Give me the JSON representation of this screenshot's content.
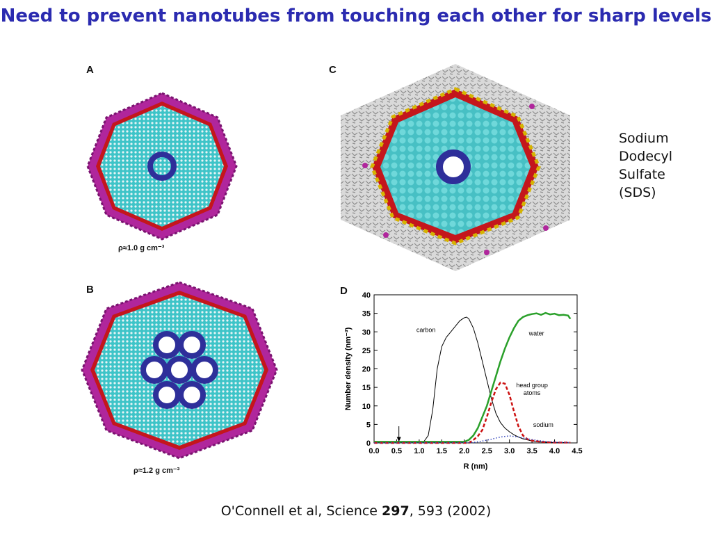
{
  "slide": {
    "title": "Need to prevent nanotubes from touching each other for sharp levels",
    "sds_label": [
      "Sodium",
      "Dodecyl",
      "Sulfate",
      "(SDS)"
    ],
    "citation": {
      "authors": "O'Connell et al,  Science ",
      "volume": "297",
      "rest": ", 593 (2002)"
    }
  },
  "panels": {
    "a": {
      "label": "A",
      "density": "ρ≈1.0 g cm⁻³"
    },
    "b": {
      "label": "B",
      "density": "ρ≈1.2 g cm⁻³"
    },
    "c": {
      "label": "C"
    },
    "d": {
      "label": "D"
    }
  },
  "colors": {
    "title": "#2b2bb0",
    "nanotube": "#2e2f9a",
    "hydrocarbon": "#3ec4c8",
    "sodium": "#b0269c",
    "sulfate": "#d6b400",
    "oxygen": "#c4161c",
    "carbon_curve": "#000000",
    "water_curve": "#2aa02a",
    "head_curve": "#cc1111",
    "sodium_curve": "#3344bb"
  },
  "chart_data": {
    "type": "line",
    "xlabel": "R (nm)",
    "ylabel": "Number density  (nm⁻³)",
    "xlim": [
      0.0,
      4.5
    ],
    "ylim": [
      0,
      40
    ],
    "xticks": [
      "0.0",
      "0.5",
      "1.0",
      "1.5",
      "2.0",
      "2.5",
      "3.0",
      "3.5",
      "4.0",
      "4.5"
    ],
    "yticks": [
      "0",
      "5",
      "10",
      "15",
      "20",
      "25",
      "30",
      "35",
      "40"
    ],
    "annotations": [
      "carbon",
      "water",
      "head group",
      "atoms",
      "sodium"
    ],
    "arrow_x": 0.55,
    "series": [
      {
        "name": "carbon",
        "style": "solid",
        "color": "#000000",
        "x": [
          0.0,
          1.1,
          1.2,
          1.3,
          1.4,
          1.5,
          1.6,
          1.7,
          1.8,
          1.9,
          2.0,
          2.05,
          2.1,
          2.2,
          2.3,
          2.4,
          2.5,
          2.6,
          2.7,
          2.8,
          2.9,
          3.0,
          3.1,
          3.2,
          3.3,
          3.4,
          3.5,
          3.6,
          3.8,
          4.0,
          4.3
        ],
        "y": [
          0.3,
          0.3,
          2,
          9,
          20,
          26,
          28.5,
          30,
          31.5,
          33,
          33.8,
          34,
          33.5,
          31,
          27,
          22,
          17,
          12,
          8,
          5.5,
          4,
          3,
          2.2,
          1.6,
          1.1,
          0.8,
          0.5,
          0.3,
          0.2,
          0.1,
          0.1
        ]
      },
      {
        "name": "water",
        "style": "solid",
        "color": "#2aa02a",
        "x": [
          0.0,
          2.0,
          2.1,
          2.2,
          2.3,
          2.4,
          2.5,
          2.6,
          2.7,
          2.8,
          2.9,
          3.0,
          3.1,
          3.2,
          3.3,
          3.4,
          3.5,
          3.6,
          3.7,
          3.8,
          3.9,
          4.0,
          4.1,
          4.2,
          4.3,
          4.35
        ],
        "y": [
          0.3,
          0.3,
          0.8,
          2,
          4,
          7,
          10,
          14,
          18,
          22,
          25.5,
          28.5,
          31,
          33,
          34,
          34.5,
          34.8,
          35,
          34.6,
          35.1,
          34.7,
          34.9,
          34.5,
          34.6,
          34.4,
          33.5
        ]
      },
      {
        "name": "head group atoms",
        "style": "dashed",
        "color": "#cc1111",
        "x": [
          0.0,
          2.1,
          2.2,
          2.3,
          2.4,
          2.5,
          2.6,
          2.7,
          2.8,
          2.9,
          3.0,
          3.1,
          3.2,
          3.3,
          3.4,
          3.5,
          3.7,
          4.0,
          4.35
        ],
        "y": [
          0,
          0,
          0.8,
          1.8,
          3.5,
          7,
          11,
          14.5,
          16.3,
          16,
          13,
          8.5,
          4.5,
          2,
          1,
          0.6,
          0.3,
          0.1,
          0.1
        ]
      },
      {
        "name": "sodium",
        "style": "dotted",
        "color": "#3344bb",
        "x": [
          0.0,
          2.2,
          2.4,
          2.6,
          2.8,
          3.0,
          3.2,
          3.4,
          3.6,
          3.8,
          4.0,
          4.35
        ],
        "y": [
          0,
          0.1,
          0.5,
          1.0,
          1.6,
          1.9,
          1.6,
          1.1,
          0.7,
          0.4,
          0.2,
          0.1
        ]
      }
    ]
  }
}
